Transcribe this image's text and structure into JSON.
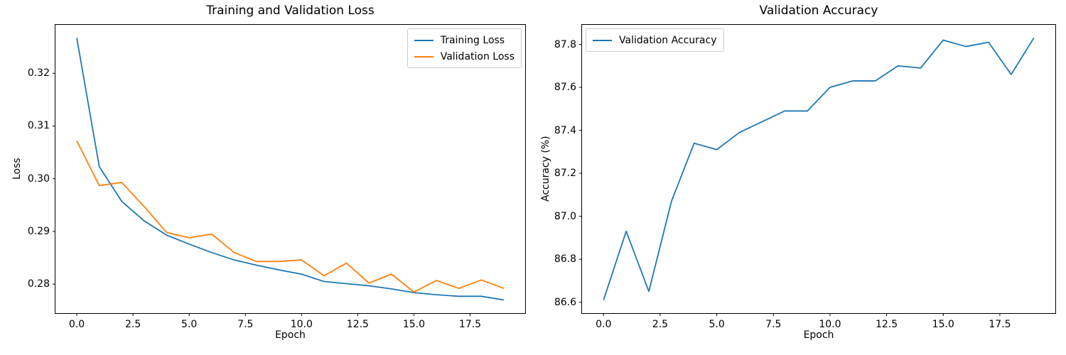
{
  "figure": {
    "background": "#ffffff"
  },
  "chart_data": [
    {
      "type": "line",
      "title": "Training and Validation Loss",
      "xlabel": "Epoch",
      "ylabel": "Loss",
      "grid": false,
      "legend_position": "upper-right",
      "xlim": [
        -0.95,
        19.95
      ],
      "ylim": [
        0.27451,
        0.32919
      ],
      "x_ticks": [
        0,
        2.5,
        5,
        7.5,
        10,
        12.5,
        15,
        17.5
      ],
      "x_tick_labels": [
        "0.0",
        "2.5",
        "5.0",
        "7.5",
        "10.0",
        "12.5",
        "15.0",
        "17.5"
      ],
      "y_ticks": [
        0.28,
        0.29,
        0.3,
        0.31,
        0.32
      ],
      "y_tick_labels": [
        "0.28",
        "0.29",
        "0.30",
        "0.31",
        "0.32"
      ],
      "x": [
        0,
        1,
        2,
        3,
        4,
        5,
        6,
        7,
        8,
        9,
        10,
        11,
        12,
        13,
        14,
        15,
        16,
        17,
        18,
        19
      ],
      "series": [
        {
          "name": "Training Loss",
          "color": "#1f77b4",
          "values": [
            0.3267,
            0.3023,
            0.2957,
            0.292,
            0.2893,
            0.2876,
            0.286,
            0.2846,
            0.2836,
            0.2827,
            0.2819,
            0.2805,
            0.2801,
            0.2797,
            0.2791,
            0.2784,
            0.278,
            0.2777,
            0.2777,
            0.277
          ]
        },
        {
          "name": "Validation Loss",
          "color": "#ff7f0e",
          "values": [
            0.3072,
            0.2987,
            0.2993,
            0.2947,
            0.2898,
            0.2888,
            0.2895,
            0.286,
            0.2843,
            0.2843,
            0.2846,
            0.2816,
            0.284,
            0.2802,
            0.2819,
            0.2785,
            0.2807,
            0.2792,
            0.2808,
            0.2792
          ]
        }
      ]
    },
    {
      "type": "line",
      "title": "Validation Accuracy",
      "xlabel": "Epoch",
      "ylabel": "Accuracy (%)",
      "grid": false,
      "legend_position": "upper-left",
      "xlim": [
        -0.95,
        19.95
      ],
      "ylim": [
        86.549,
        87.891
      ],
      "x_ticks": [
        0,
        2.5,
        5,
        7.5,
        10,
        12.5,
        15,
        17.5
      ],
      "x_tick_labels": [
        "0.0",
        "2.5",
        "5.0",
        "7.5",
        "10.0",
        "12.5",
        "15.0",
        "17.5"
      ],
      "y_ticks": [
        86.6,
        86.8,
        87.0,
        87.2,
        87.4,
        87.6,
        87.8
      ],
      "y_tick_labels": [
        "86.6",
        "86.8",
        "87.0",
        "87.2",
        "87.4",
        "87.6",
        "87.8"
      ],
      "x": [
        0,
        1,
        2,
        3,
        4,
        5,
        6,
        7,
        8,
        9,
        10,
        11,
        12,
        13,
        14,
        15,
        16,
        17,
        18,
        19
      ],
      "series": [
        {
          "name": "Validation Accuracy",
          "color": "#1f77b4",
          "values": [
            86.61,
            86.93,
            86.65,
            87.07,
            87.34,
            87.31,
            87.39,
            87.44,
            87.49,
            87.49,
            87.6,
            87.63,
            87.63,
            87.7,
            87.69,
            87.82,
            87.79,
            87.81,
            87.66,
            87.83
          ]
        }
      ]
    }
  ]
}
